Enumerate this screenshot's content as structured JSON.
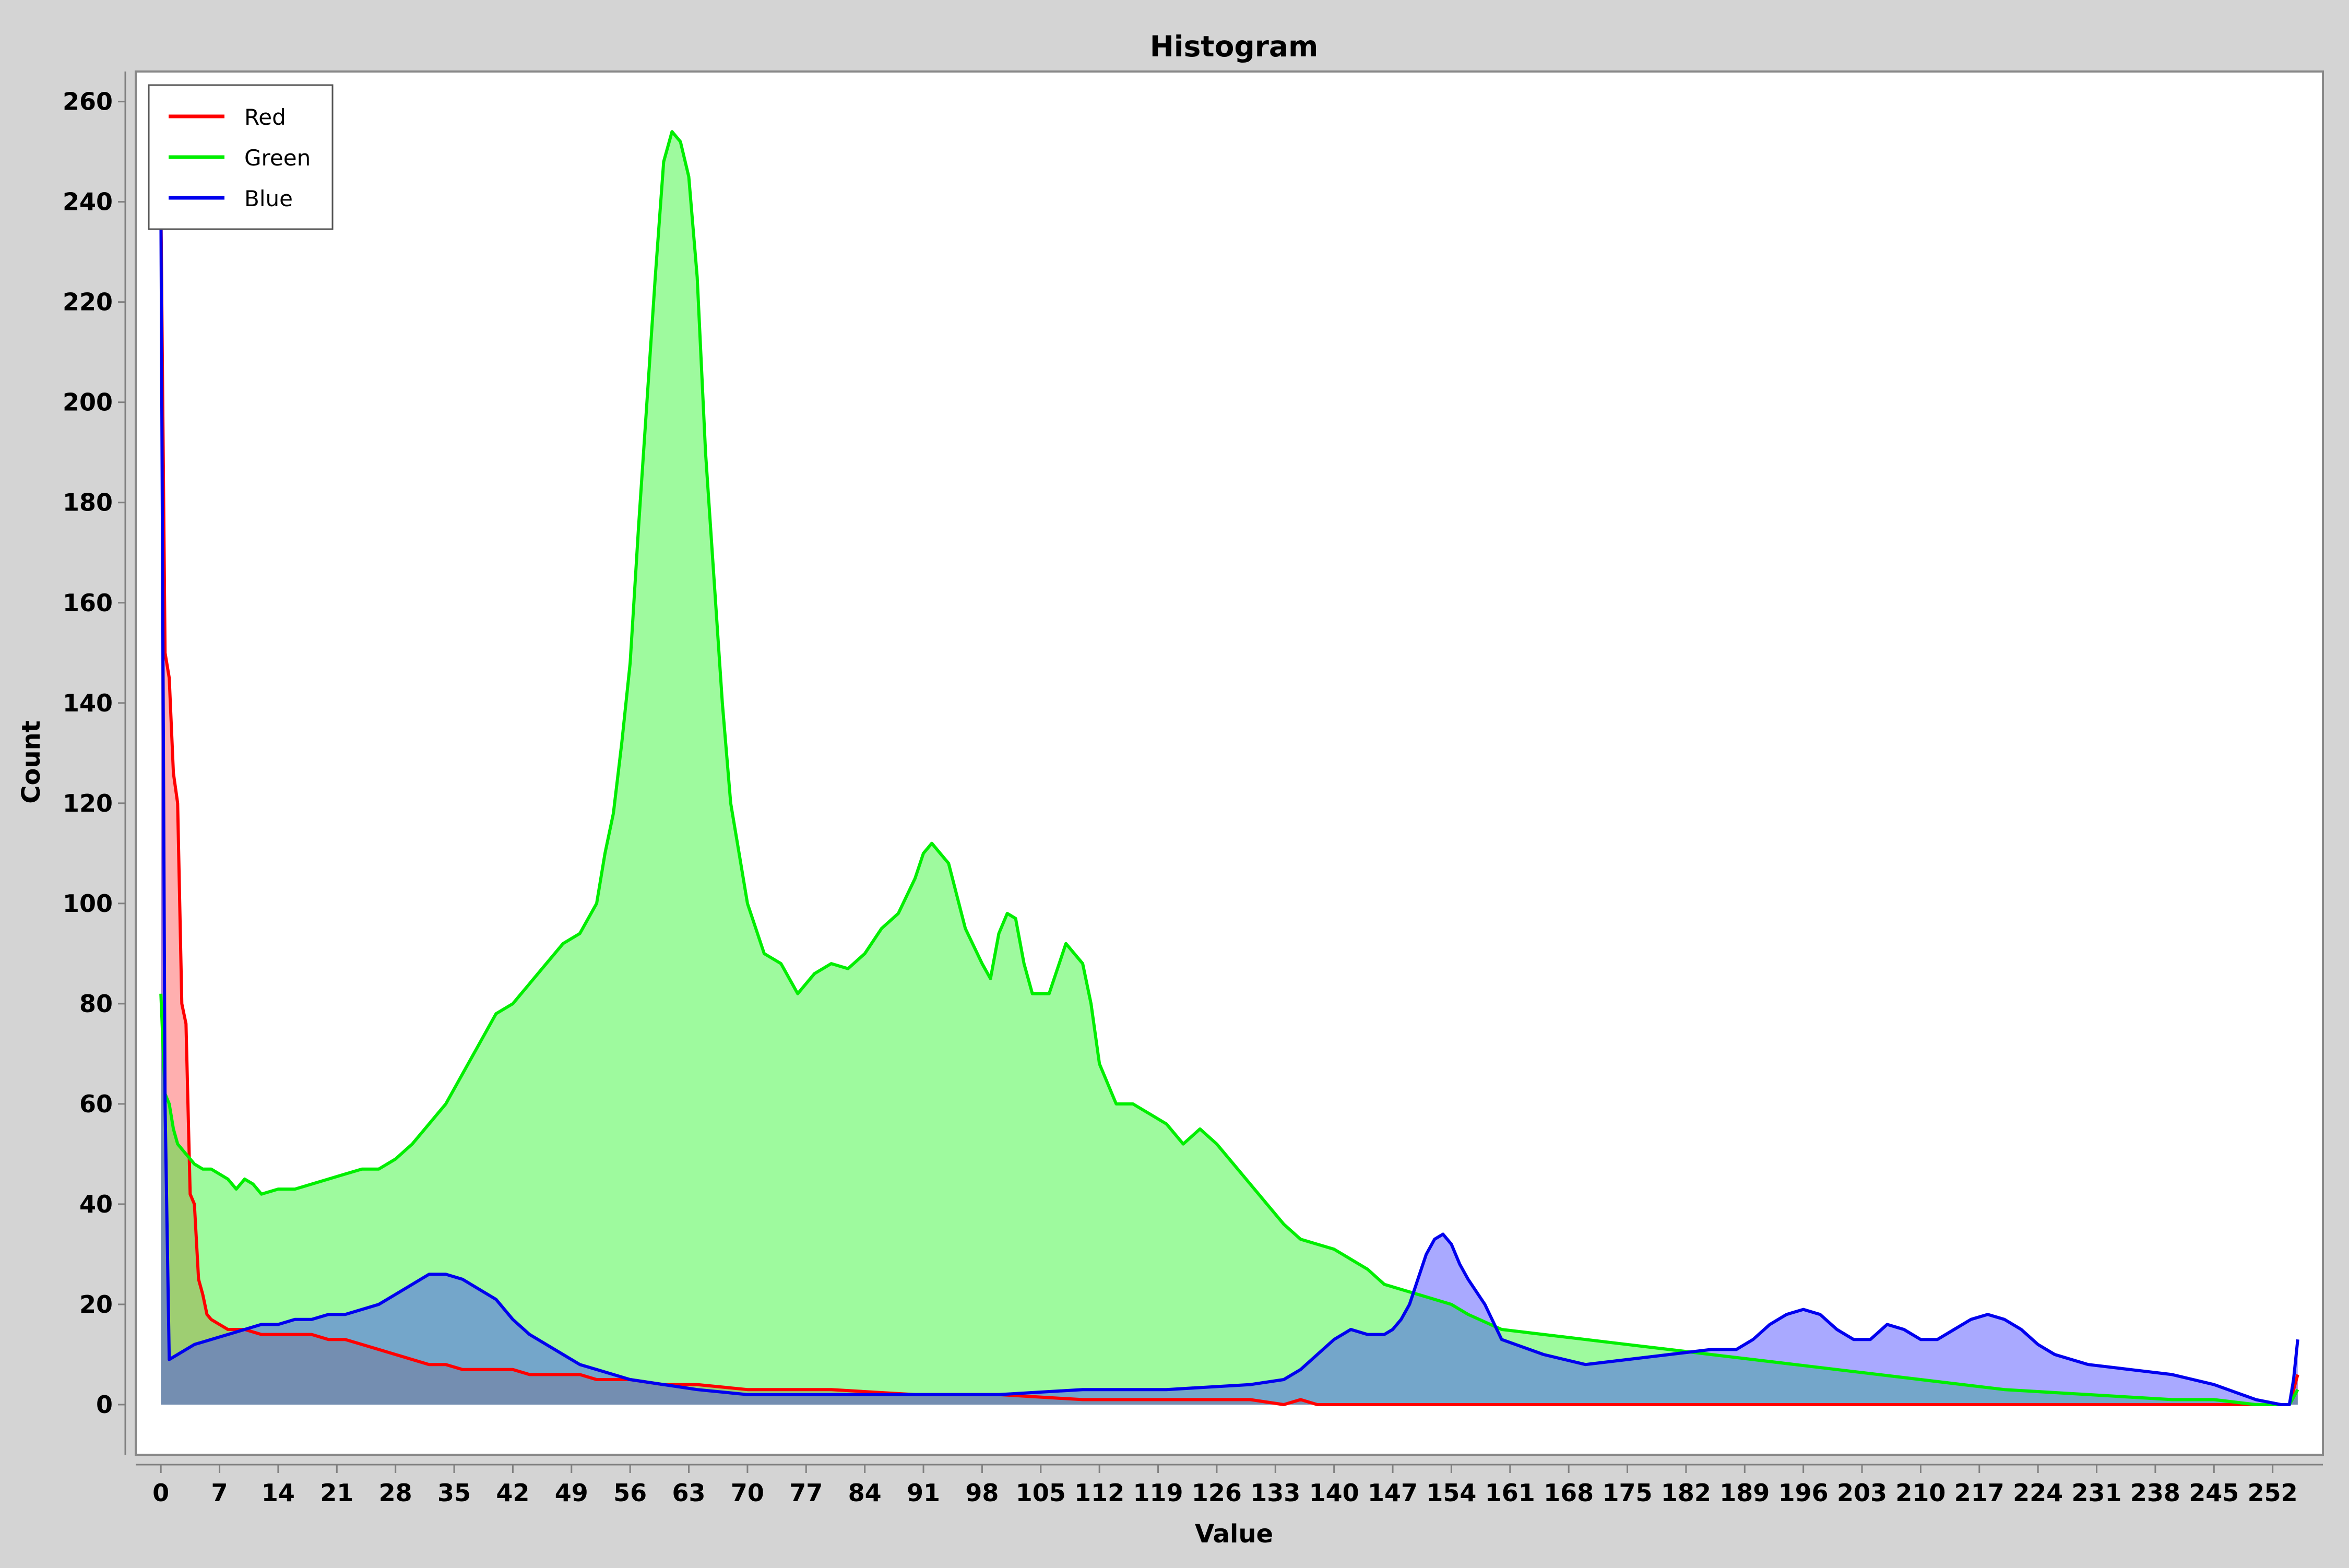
{
  "chart_data": {
    "type": "area",
    "title": "Histogram",
    "xlabel": "Value",
    "ylabel": "Count",
    "xlim": [
      -3,
      258
    ],
    "ylim": [
      -10,
      266
    ],
    "x_ticks": [
      0,
      7,
      14,
      21,
      28,
      35,
      42,
      49,
      56,
      63,
      70,
      77,
      84,
      91,
      98,
      105,
      112,
      119,
      126,
      133,
      140,
      147,
      154,
      161,
      168,
      175,
      182,
      189,
      196,
      203,
      210,
      217,
      224,
      231,
      238,
      245,
      252
    ],
    "y_ticks": [
      0,
      20,
      40,
      60,
      80,
      100,
      120,
      140,
      160,
      180,
      200,
      220,
      240,
      260
    ],
    "grid": false,
    "legend": "top-left",
    "series": [
      {
        "name": "Red",
        "color": "#ff0000",
        "fill": "rgba(255,64,64,0.42)",
        "x": [
          0,
          0.5,
          1,
          1.5,
          2,
          2.5,
          3,
          3.5,
          4,
          4.5,
          5,
          5.5,
          6,
          7,
          8,
          10,
          12,
          14,
          16,
          18,
          20,
          22,
          24,
          26,
          28,
          30,
          32,
          34,
          36,
          38,
          40,
          42,
          44,
          46,
          48,
          50,
          52,
          56,
          60,
          64,
          70,
          80,
          90,
          100,
          110,
          120,
          130,
          134,
          136,
          138,
          140,
          150,
          160,
          180,
          200,
          220,
          240,
          250,
          254,
          255
        ],
        "values": [
          240,
          150,
          145,
          126,
          120,
          80,
          76,
          42,
          40,
          25,
          22,
          18,
          17,
          16,
          15,
          15,
          14,
          14,
          14,
          14,
          13,
          13,
          12,
          11,
          10,
          9,
          8,
          8,
          7,
          7,
          7,
          7,
          6,
          6,
          6,
          6,
          5,
          5,
          4,
          4,
          3,
          3,
          2,
          2,
          1,
          1,
          1,
          0,
          1,
          0,
          0,
          0,
          0,
          0,
          0,
          0,
          0,
          0,
          0,
          6
        ]
      },
      {
        "name": "Green",
        "color": "#00ee00",
        "fill": "rgba(40,245,40,0.45)",
        "x": [
          0,
          0.5,
          1,
          1.5,
          2,
          3,
          4,
          5,
          6,
          8,
          9,
          10,
          11,
          12,
          14,
          16,
          18,
          20,
          22,
          24,
          26,
          28,
          30,
          32,
          34,
          36,
          38,
          40,
          42,
          44,
          46,
          48,
          50,
          52,
          53,
          54,
          55,
          56,
          57,
          58,
          59,
          60,
          61,
          62,
          63,
          64,
          65,
          66,
          67,
          68,
          69,
          70,
          72,
          74,
          76,
          78,
          80,
          82,
          84,
          86,
          88,
          90,
          91,
          92,
          93,
          94,
          96,
          98,
          99,
          100,
          101,
          102,
          103,
          104,
          106,
          107,
          108,
          110,
          111,
          112,
          114,
          116,
          118,
          120,
          122,
          124,
          126,
          128,
          130,
          132,
          134,
          136,
          138,
          140,
          142,
          144,
          146,
          148,
          150,
          152,
          154,
          156,
          160,
          165,
          170,
          175,
          180,
          185,
          190,
          195,
          200,
          210,
          220,
          230,
          240,
          245,
          250,
          254,
          255
        ],
        "values": [
          82,
          62,
          60,
          55,
          52,
          50,
          48,
          47,
          47,
          45,
          43,
          45,
          44,
          42,
          43,
          43,
          44,
          45,
          46,
          47,
          47,
          49,
          52,
          56,
          60,
          66,
          72,
          78,
          80,
          84,
          88,
          92,
          94,
          100,
          110,
          118,
          132,
          148,
          175,
          200,
          225,
          248,
          254,
          252,
          245,
          225,
          190,
          165,
          140,
          120,
          110,
          100,
          90,
          88,
          82,
          86,
          88,
          87,
          90,
          95,
          98,
          105,
          110,
          112,
          110,
          108,
          95,
          88,
          85,
          94,
          98,
          97,
          88,
          82,
          82,
          87,
          92,
          88,
          80,
          68,
          60,
          60,
          58,
          56,
          52,
          55,
          52,
          48,
          44,
          40,
          36,
          33,
          32,
          31,
          29,
          27,
          24,
          23,
          22,
          21,
          20,
          18,
          15,
          14,
          13,
          12,
          11,
          10,
          9,
          8,
          7,
          5,
          3,
          2,
          1,
          1,
          0,
          0,
          3
        ]
      },
      {
        "name": "Blue",
        "color": "#0000ee",
        "fill": "rgba(64,64,255,0.45)",
        "x": [
          0,
          0.5,
          1,
          2,
          4,
          6,
          8,
          10,
          12,
          14,
          16,
          18,
          20,
          22,
          24,
          26,
          28,
          30,
          32,
          34,
          36,
          38,
          40,
          42,
          44,
          46,
          48,
          50,
          52,
          56,
          60,
          64,
          70,
          80,
          90,
          100,
          110,
          120,
          130,
          134,
          136,
          138,
          140,
          142,
          144,
          146,
          147,
          148,
          149,
          150,
          151,
          152,
          153,
          154,
          155,
          156,
          158,
          160,
          165,
          170,
          175,
          180,
          185,
          188,
          190,
          192,
          194,
          196,
          198,
          200,
          202,
          204,
          206,
          208,
          210,
          212,
          214,
          216,
          218,
          220,
          222,
          224,
          226,
          228,
          230,
          235,
          240,
          245,
          250,
          253,
          254,
          254.5,
          255
        ],
        "values": [
          240,
          60,
          9,
          10,
          12,
          13,
          14,
          15,
          16,
          16,
          17,
          17,
          18,
          18,
          19,
          20,
          22,
          24,
          26,
          26,
          25,
          23,
          21,
          17,
          14,
          12,
          10,
          8,
          7,
          5,
          4,
          3,
          2,
          2,
          2,
          2,
          3,
          3,
          4,
          5,
          7,
          10,
          13,
          15,
          14,
          14,
          15,
          17,
          20,
          25,
          30,
          33,
          34,
          32,
          28,
          25,
          20,
          13,
          10,
          8,
          9,
          10,
          11,
          11,
          13,
          16,
          18,
          19,
          18,
          15,
          13,
          13,
          16,
          15,
          13,
          13,
          15,
          17,
          18,
          17,
          15,
          12,
          10,
          9,
          8,
          7,
          6,
          4,
          1,
          0,
          0,
          5,
          13
        ]
      }
    ]
  }
}
